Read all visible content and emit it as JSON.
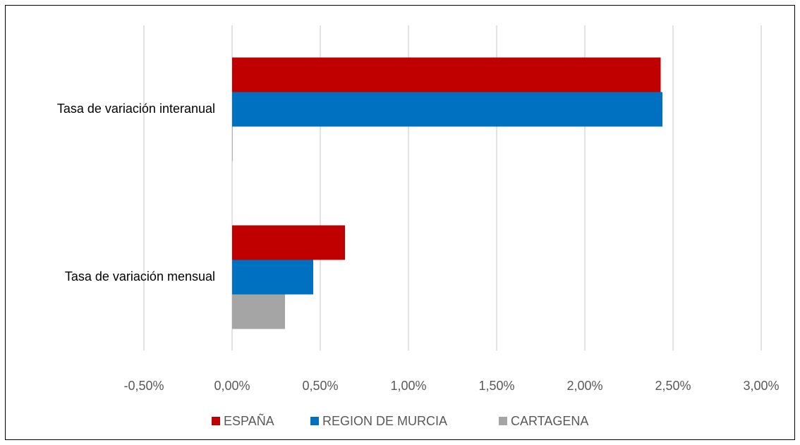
{
  "chart_data": {
    "type": "bar",
    "orientation": "horizontal",
    "categories": [
      "Tasa de variación interanual",
      "Tasa de variación mensual"
    ],
    "series": [
      {
        "name": "ESPAÑA",
        "color": "#c00000",
        "values": [
          2.43,
          0.64
        ]
      },
      {
        "name": "REGION DE MURCIA",
        "color": "#0070c0",
        "values": [
          2.44,
          0.46
        ]
      },
      {
        "name": "CARTAGENA",
        "color": "#a5a5a5",
        "values": [
          0,
          0.3
        ]
      }
    ],
    "xlim": [
      -0.5,
      3.0
    ],
    "xticks": [
      {
        "value": -0.5,
        "label": "-0,50%"
      },
      {
        "value": 0,
        "label": "0,00%"
      },
      {
        "value": 0.5,
        "label": "0,50%"
      },
      {
        "value": 1.0,
        "label": "1,00%"
      },
      {
        "value": 1.5,
        "label": "1,50%"
      },
      {
        "value": 2.0,
        "label": "2,00%"
      },
      {
        "value": 2.5,
        "label": "2,50%"
      },
      {
        "value": 3.0,
        "label": "3,00%"
      }
    ],
    "grid": true,
    "legend": "bottom"
  }
}
